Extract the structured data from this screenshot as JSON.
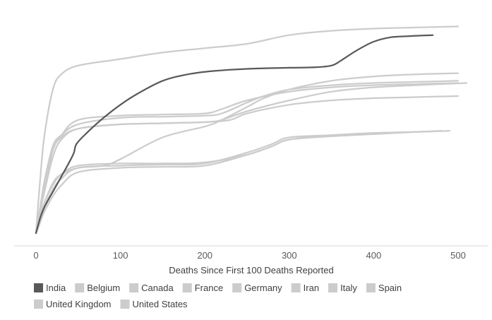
{
  "chart_data": {
    "type": "line",
    "title": "",
    "xlabel": "Deaths Since First 100 Deaths Reported",
    "ylabel": "",
    "xlim": [
      0,
      500
    ],
    "x_ticks": [
      0,
      100,
      200,
      300,
      400,
      500
    ],
    "y_axis_labels_shown": false,
    "grid": false,
    "legend_position": "bottom",
    "highlight_color": "#595959",
    "muted_color": "#cccccc",
    "series": [
      {
        "name": "India",
        "highlight": true,
        "x": [
          0,
          5,
          10,
          20,
          30,
          40,
          45,
          48,
          60,
          80,
          100,
          120,
          150,
          180,
          210,
          250,
          300,
          330,
          350,
          360,
          380,
          400,
          420,
          440,
          470
        ],
        "y": [
          0.0,
          0.07,
          0.12,
          0.19,
          0.26,
          0.33,
          0.37,
          0.41,
          0.46,
          0.53,
          0.59,
          0.64,
          0.7,
          0.73,
          0.745,
          0.755,
          0.76,
          0.762,
          0.77,
          0.79,
          0.84,
          0.88,
          0.9,
          0.905,
          0.91
        ]
      },
      {
        "name": "Belgium",
        "x": [
          0,
          5,
          10,
          20,
          30,
          50,
          100,
          150,
          200,
          220,
          250,
          270,
          300,
          350,
          400,
          450,
          500
        ],
        "y": [
          0.0,
          0.12,
          0.24,
          0.4,
          0.45,
          0.5,
          0.53,
          0.535,
          0.54,
          0.55,
          0.6,
          0.63,
          0.66,
          0.68,
          0.69,
          0.695,
          0.7
        ]
      },
      {
        "name": "Canada",
        "x": [
          0,
          5,
          10,
          20,
          30,
          50,
          100,
          150,
          200,
          250,
          280,
          300,
          350,
          400,
          450,
          480
        ],
        "y": [
          0.0,
          0.06,
          0.14,
          0.22,
          0.27,
          0.31,
          0.32,
          0.32,
          0.325,
          0.36,
          0.4,
          0.43,
          0.45,
          0.46,
          0.465,
          0.47
        ]
      },
      {
        "name": "France",
        "x": [
          0,
          5,
          10,
          20,
          30,
          50,
          100,
          150,
          200,
          220,
          250,
          300,
          350,
          400,
          450,
          500
        ],
        "y": [
          0.0,
          0.12,
          0.22,
          0.39,
          0.45,
          0.52,
          0.54,
          0.545,
          0.55,
          0.57,
          0.61,
          0.65,
          0.67,
          0.68,
          0.685,
          0.69
        ]
      },
      {
        "name": "Germany",
        "x": [
          0,
          5,
          10,
          20,
          30,
          50,
          100,
          150,
          200,
          250,
          280,
          300,
          350,
          400,
          450,
          480
        ],
        "y": [
          0.0,
          0.05,
          0.12,
          0.2,
          0.25,
          0.3,
          0.31,
          0.315,
          0.32,
          0.37,
          0.41,
          0.44,
          0.45,
          0.46,
          0.465,
          0.47
        ]
      },
      {
        "name": "Iran",
        "x": [
          0,
          5,
          10,
          20,
          30,
          50,
          100,
          150,
          200,
          250,
          280,
          300,
          350,
          400,
          450,
          490
        ],
        "y": [
          0.0,
          0.05,
          0.1,
          0.17,
          0.22,
          0.28,
          0.3,
          0.305,
          0.31,
          0.36,
          0.4,
          0.43,
          0.445,
          0.455,
          0.465,
          0.47
        ]
      },
      {
        "name": "Italy",
        "x": [
          0,
          5,
          10,
          20,
          30,
          50,
          100,
          150,
          200,
          250,
          300,
          350,
          400,
          450,
          500
        ],
        "y": [
          0.0,
          0.25,
          0.45,
          0.66,
          0.73,
          0.77,
          0.8,
          0.83,
          0.85,
          0.87,
          0.91,
          0.93,
          0.94,
          0.945,
          0.95
        ]
      },
      {
        "name": "Spain",
        "x": [
          0,
          5,
          10,
          20,
          30,
          50,
          100,
          150,
          200,
          220,
          250,
          300,
          350,
          400,
          450,
          510
        ],
        "y": [
          0.0,
          0.1,
          0.2,
          0.38,
          0.44,
          0.48,
          0.5,
          0.505,
          0.51,
          0.52,
          0.56,
          0.61,
          0.65,
          0.67,
          0.68,
          0.69
        ]
      },
      {
        "name": "United Kingdom",
        "x": [
          0,
          5,
          10,
          20,
          30,
          50,
          80,
          100,
          150,
          200,
          220,
          250,
          270,
          300,
          350,
          400,
          450,
          500
        ],
        "y": [
          0.0,
          0.08,
          0.14,
          0.23,
          0.27,
          0.3,
          0.31,
          0.34,
          0.44,
          0.49,
          0.52,
          0.58,
          0.62,
          0.66,
          0.7,
          0.72,
          0.73,
          0.735
        ]
      },
      {
        "name": "United States",
        "x": [
          0,
          5,
          10,
          20,
          30,
          50,
          100,
          150,
          200,
          230,
          250,
          300,
          350,
          400,
          450,
          500
        ],
        "y": [
          0.0,
          0.1,
          0.19,
          0.35,
          0.43,
          0.48,
          0.5,
          0.505,
          0.51,
          0.52,
          0.55,
          0.59,
          0.61,
          0.62,
          0.625,
          0.63
        ]
      }
    ]
  }
}
